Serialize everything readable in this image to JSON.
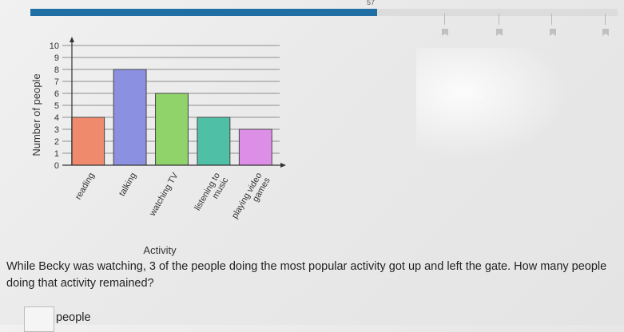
{
  "progress": {
    "count": "57",
    "fraction": 0.59,
    "fill_color": "#1f6fa5"
  },
  "chart_data": {
    "type": "bar",
    "categories": [
      "reading",
      "talking",
      "watching TV",
      "listening to music",
      "playing video games"
    ],
    "category_label_lines": [
      [
        "reading"
      ],
      [
        "talking"
      ],
      [
        "watching TV"
      ],
      [
        "listening to",
        "music"
      ],
      [
        "playing video",
        "games"
      ]
    ],
    "values": [
      4,
      8,
      6,
      4,
      3
    ],
    "colors": [
      "#f08a6c",
      "#8c90e0",
      "#8fd36a",
      "#4fbfa6",
      "#dd8ee6"
    ],
    "xlabel": "Activity",
    "ylabel": "Number of people",
    "ylim": [
      0,
      10
    ],
    "yticks": [
      "0",
      "1",
      "2",
      "3",
      "4",
      "5",
      "6",
      "7",
      "8",
      "9",
      "10"
    ],
    "grid": true
  },
  "question": {
    "text": "While Becky was watching, 3 of the people doing the most popular activity got up and left the gate. How many people doing that activity remained?"
  },
  "answer": {
    "value": "",
    "unit": "people"
  }
}
